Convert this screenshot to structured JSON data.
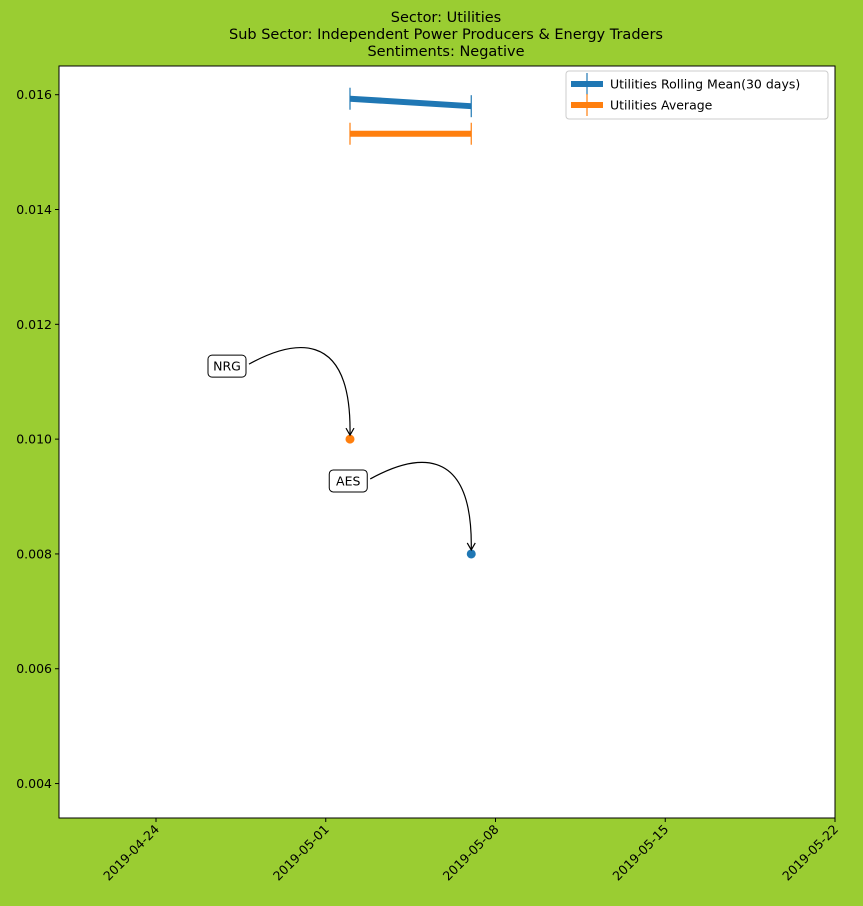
{
  "chart_data": {
    "type": "line",
    "title_lines": [
      "Sector:  Utilities",
      "Sub Sector:  Independent Power Producers & Energy Traders",
      "Sentiments:  Negative"
    ],
    "xlabel": "",
    "ylabel": "",
    "x_scale": "date",
    "xlim": [
      "2019-04-20",
      "2019-05-22"
    ],
    "ylim": [
      0.0034,
      0.0165
    ],
    "x_ticks": [
      "2019-04-24",
      "2019-05-01",
      "2019-05-08",
      "2019-05-15",
      "2019-05-22"
    ],
    "y_ticks": [
      "0.004",
      "0.006",
      "0.008",
      "0.010",
      "0.012",
      "0.014",
      "0.016"
    ],
    "grid": false,
    "legend_position": "upper right",
    "series": [
      {
        "name": "Utilities Rolling Mean(30 days)",
        "color": "#1f77b4",
        "x": [
          "2019-05-02",
          "2019-05-07"
        ],
        "y": [
          0.01593,
          0.0158
        ]
      },
      {
        "name": "Utilities Average",
        "color": "#ff7f0e",
        "x": [
          "2019-05-02",
          "2019-05-07"
        ],
        "y": [
          0.01532,
          0.01532
        ]
      }
    ],
    "points": [
      {
        "label": "NRG",
        "x": "2019-05-02",
        "y": 0.01,
        "color": "#ff7f0e"
      },
      {
        "label": "AES",
        "x": "2019-05-07",
        "y": 0.008,
        "color": "#1f77b4"
      }
    ]
  }
}
